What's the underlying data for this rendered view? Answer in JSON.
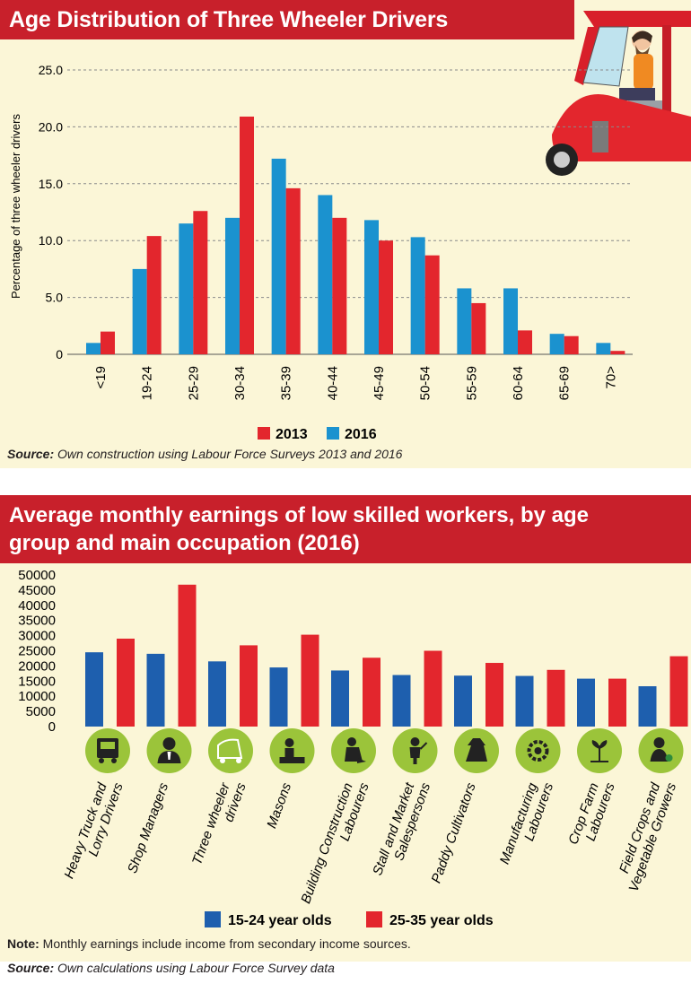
{
  "chart_data": [
    {
      "type": "bar",
      "title": "Age Distribution of Three Wheeler Drivers",
      "ylabel": "Percentage of three wheeler drivers",
      "ylim": [
        0,
        25
      ],
      "yticks": [
        "25.0",
        "20.0",
        "15.0",
        "10.0",
        "5.0",
        "0"
      ],
      "categories": [
        "<19",
        "19-24",
        "25-29",
        "30-34",
        "35-39",
        "40-44",
        "45-49",
        "50-54",
        "55-59",
        "60-64",
        "65-69",
        "70>"
      ],
      "series": [
        {
          "name": "2016",
          "color": "#1b92cf",
          "values": [
            1.0,
            7.5,
            11.5,
            12.0,
            17.2,
            14.0,
            11.8,
            10.3,
            5.8,
            5.8,
            1.8,
            1.0
          ]
        },
        {
          "name": "2013",
          "color": "#e3262d",
          "values": [
            2.0,
            10.4,
            12.6,
            20.9,
            14.6,
            12.0,
            10.0,
            8.7,
            4.5,
            2.1,
            1.6,
            0.3
          ]
        }
      ],
      "legend": [
        "2013",
        "2016"
      ],
      "legend_position": "bottom-right",
      "grid": "horizontal-dashed",
      "source_label": "Source:",
      "source_text": " Own construction using Labour Force Surveys 2013 and 2016"
    },
    {
      "type": "bar",
      "title_line1": "Average monthly earnings of low skilled workers, by age",
      "title_line2": "group and main occupation (2016)",
      "ylim": [
        0,
        50000
      ],
      "yticks": [
        "50000",
        "45000",
        "40000",
        "35000",
        "30000",
        "25000",
        "20000",
        "15000",
        "10000",
        "5000",
        "0"
      ],
      "categories": [
        {
          "line1": "Heavy Truck and",
          "line2": "Lorry Drivers",
          "icon": "truck-icon"
        },
        {
          "line1": "Shop Managers",
          "line2": "",
          "icon": "manager-icon"
        },
        {
          "line1": "Three wheeler",
          "line2": "drivers",
          "icon": "three-wheeler-icon"
        },
        {
          "line1": "Masons",
          "line2": "",
          "icon": "mason-icon"
        },
        {
          "line1": "Building Construction",
          "line2": "Labourers",
          "icon": "construction-worker-icon"
        },
        {
          "line1": "Stall and Market",
          "line2": "Salespersons",
          "icon": "salesperson-icon"
        },
        {
          "line1": "Paddy Cultivators",
          "line2": "",
          "icon": "farmer-icon"
        },
        {
          "line1": "Manufacturing",
          "line2": "Labourers",
          "icon": "gear-worker-icon"
        },
        {
          "line1": "Crop Farm",
          "line2": "Labourers",
          "icon": "plant-icon"
        },
        {
          "line1": "Field Crops and",
          "line2": "Vegetable Growers",
          "icon": "grower-icon"
        }
      ],
      "series": [
        {
          "name": "15-24 year olds",
          "color": "#1e5fae",
          "values": [
            24500,
            24000,
            21500,
            19500,
            18500,
            17000,
            16800,
            16700,
            15800,
            13300
          ]
        },
        {
          "name": "25-35 year olds",
          "color": "#e3262d",
          "values": [
            29000,
            46800,
            26800,
            30300,
            22700,
            25000,
            21000,
            18700,
            15800,
            23200
          ]
        }
      ],
      "legend_position": "bottom-center",
      "note_label": "Note:",
      "note_text": " Monthly earnings include income from secondary income sources.",
      "source_label": "Source:",
      "source_text": " Own calculations using Labour Force Survey data"
    }
  ]
}
